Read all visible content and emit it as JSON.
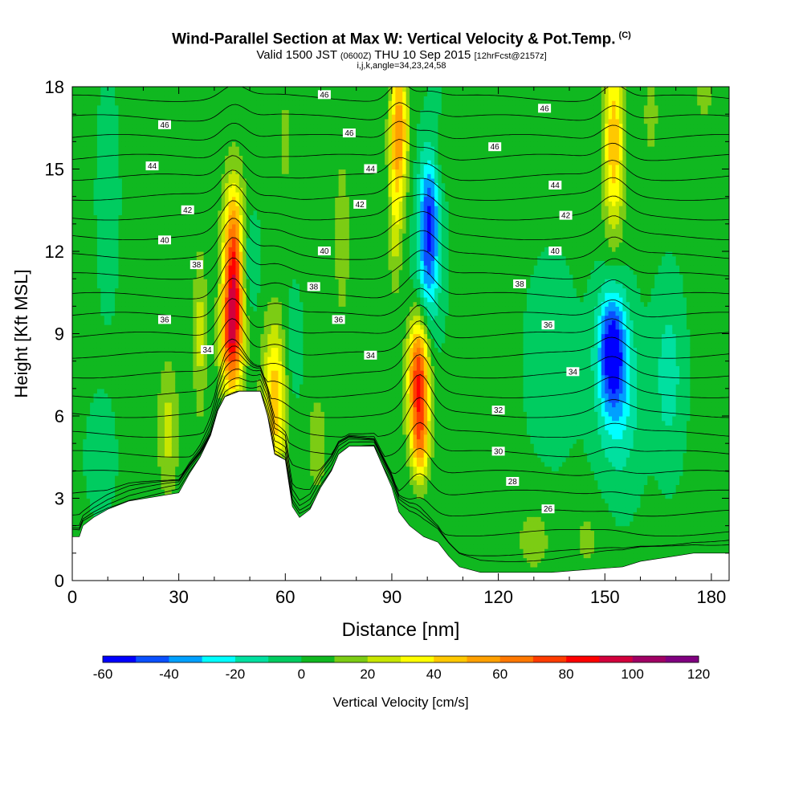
{
  "header": {
    "title": "Wind-Parallel Section at Max W: Vertical Velocity & Pot.Temp.",
    "title_mark": "(C)",
    "valid_a": "Valid 1500 JST",
    "valid_b": "(0600Z)",
    "valid_c": "THU 10 Sep 2015",
    "valid_d": "[12hrFcst@2157z]",
    "indices": "i,j,k,angle=34,23,24,58"
  },
  "chart_data": {
    "type": "heatmap",
    "xlabel": "Distance [nm]",
    "ylabel": "Height [Kft MSL]",
    "xlim": [
      0,
      185
    ],
    "ylim": [
      0,
      18
    ],
    "x_ticks": [
      "0",
      "30",
      "60",
      "90",
      "120",
      "150",
      "180"
    ],
    "y_ticks": [
      "0",
      "3",
      "6",
      "9",
      "12",
      "15",
      "18"
    ],
    "colorbar": {
      "label": "Vertical Velocity [cm/s]",
      "tick_labels": [
        "-60",
        "-40",
        "-20",
        "0",
        "20",
        "40",
        "60",
        "80",
        "100",
        "120"
      ],
      "levels": [
        -60,
        -50,
        -40,
        -30,
        -20,
        -10,
        0,
        10,
        20,
        30,
        40,
        50,
        60,
        70,
        80,
        90,
        100,
        110,
        120
      ],
      "colors": [
        "#0000ff",
        "#0a50ff",
        "#00a0ff",
        "#00ffff",
        "#00e0a0",
        "#00cc60",
        "#10b820",
        "#7ccc14",
        "#c8e600",
        "#ffff00",
        "#ffc800",
        "#ffa000",
        "#ff7800",
        "#ff3c00",
        "#ff0000",
        "#d2003c",
        "#a00064",
        "#800080"
      ]
    },
    "background_w": 2,
    "vertical_velocity_cells": [
      {
        "x": 45.5,
        "z": 11.0,
        "rx": 3.0,
        "rz": 3.2,
        "w": 90
      },
      {
        "x": 44.5,
        "z": 8.5,
        "rx": 3.0,
        "rz": 1.8,
        "w": 40
      },
      {
        "x": 49.0,
        "z": 11.5,
        "rx": 3.0,
        "rz": 1.8,
        "w": -20
      },
      {
        "x": 57.0,
        "z": 6.5,
        "rx": 3.5,
        "rz": 3.0,
        "w": 45
      },
      {
        "x": 62.0,
        "z": 8.5,
        "rx": 2.5,
        "rz": 2.0,
        "w": -12
      },
      {
        "x": 36.0,
        "z": 9.0,
        "rx": 2.0,
        "rz": 3.0,
        "w": 22
      },
      {
        "x": 27.0,
        "z": 5.5,
        "rx": 3.0,
        "rz": 2.5,
        "w": 22
      },
      {
        "x": 76.0,
        "z": 12.5,
        "rx": 3.0,
        "rz": 4.0,
        "w": 12
      },
      {
        "x": 69.0,
        "z": 5.0,
        "rx": 3.0,
        "rz": 2.0,
        "w": 15
      },
      {
        "x": 92.0,
        "z": 16.5,
        "rx": 2.5,
        "rz": 2.5,
        "w": 55
      },
      {
        "x": 91.0,
        "z": 13.0,
        "rx": 2.0,
        "rz": 2.5,
        "w": 22
      },
      {
        "x": 97.5,
        "z": 7.5,
        "rx": 3.0,
        "rz": 2.5,
        "w": 80
      },
      {
        "x": 98.0,
        "z": 5.0,
        "rx": 2.5,
        "rz": 1.5,
        "w": 35
      },
      {
        "x": 100.5,
        "z": 13.0,
        "rx": 3.0,
        "rz": 2.5,
        "w": -55
      },
      {
        "x": 99.0,
        "z": 10.0,
        "rx": 4.0,
        "rz": 2.0,
        "w": -20
      },
      {
        "x": 103.0,
        "z": 17.5,
        "rx": 2.0,
        "rz": 1.0,
        "w": -15
      },
      {
        "x": 104.0,
        "z": 16.5,
        "rx": 2.0,
        "rz": 2.0,
        "w": 12
      },
      {
        "x": 152.5,
        "z": 16.0,
        "rx": 3.0,
        "rz": 3.5,
        "w": 45
      },
      {
        "x": 152.0,
        "z": 8.5,
        "rx": 4.0,
        "rz": 2.2,
        "w": -55
      },
      {
        "x": 154.0,
        "z": 6.5,
        "rx": 6.0,
        "rz": 3.0,
        "w": -22
      },
      {
        "x": 168.0,
        "z": 7.5,
        "rx": 4.0,
        "rz": 3.0,
        "w": -18
      },
      {
        "x": 163.0,
        "z": 17.0,
        "rx": 2.0,
        "rz": 1.5,
        "w": 15
      },
      {
        "x": 178.0,
        "z": 17.8,
        "rx": 2.5,
        "rz": 1.0,
        "w": 15
      },
      {
        "x": 10.0,
        "z": 14.0,
        "rx": 3.0,
        "rz": 4.0,
        "w": -8
      },
      {
        "x": 135.0,
        "z": 8.0,
        "rx": 8.0,
        "rz": 4.0,
        "w": -6
      },
      {
        "x": 130.0,
        "z": 1.5,
        "rx": 6.0,
        "rz": 1.5,
        "w": 12
      },
      {
        "x": 145.0,
        "z": 1.5,
        "rx": 5.0,
        "rz": 1.5,
        "w": 10
      },
      {
        "x": 8.0,
        "z": 4.5,
        "rx": 4.0,
        "rz": 2.0,
        "w": -8
      },
      {
        "x": 60.0,
        "z": 16.0,
        "rx": 3.0,
        "rz": 2.5,
        "w": 10
      }
    ],
    "terrain": [
      [
        0,
        1.6
      ],
      [
        2,
        1.6
      ],
      [
        3,
        2.0
      ],
      [
        6,
        2.3
      ],
      [
        10,
        2.6
      ],
      [
        16,
        2.9
      ],
      [
        30,
        3.2
      ],
      [
        33,
        3.9
      ],
      [
        36,
        4.5
      ],
      [
        39,
        5.3
      ],
      [
        41,
        6.2
      ],
      [
        43,
        6.7
      ],
      [
        47,
        6.9
      ],
      [
        53,
        6.9
      ],
      [
        55,
        6.0
      ],
      [
        57,
        4.6
      ],
      [
        60,
        4.4
      ],
      [
        62,
        2.7
      ],
      [
        64,
        2.3
      ],
      [
        67,
        2.6
      ],
      [
        70,
        3.4
      ],
      [
        73,
        4.0
      ],
      [
        75,
        4.6
      ],
      [
        78,
        4.9
      ],
      [
        85,
        4.9
      ],
      [
        88,
        4.0
      ],
      [
        90,
        3.4
      ],
      [
        92,
        2.5
      ],
      [
        95,
        2.0
      ],
      [
        99,
        1.6
      ],
      [
        103,
        1.4
      ],
      [
        106,
        0.9
      ],
      [
        109,
        0.5
      ],
      [
        115,
        0.3
      ],
      [
        135,
        0.3
      ],
      [
        155,
        0.5
      ],
      [
        160,
        0.7
      ],
      [
        170,
        0.9
      ],
      [
        175,
        1.0
      ],
      [
        185,
        1.0
      ]
    ],
    "theta_contour_labels": [
      {
        "text": "46",
        "x": 71.0,
        "z": 17.7
      },
      {
        "text": "46",
        "x": 26.0,
        "z": 16.6
      },
      {
        "text": "46",
        "x": 78.0,
        "z": 16.3
      },
      {
        "text": "46",
        "x": 133.0,
        "z": 17.2
      },
      {
        "text": "46",
        "x": 119.0,
        "z": 15.8
      },
      {
        "text": "44",
        "x": 22.5,
        "z": 15.1
      },
      {
        "text": "44",
        "x": 84.0,
        "z": 15.0
      },
      {
        "text": "44",
        "x": 136.0,
        "z": 14.4
      },
      {
        "text": "42",
        "x": 32.5,
        "z": 13.5
      },
      {
        "text": "42",
        "x": 81.0,
        "z": 13.7
      },
      {
        "text": "42",
        "x": 139.0,
        "z": 13.3
      },
      {
        "text": "40",
        "x": 26.0,
        "z": 12.4
      },
      {
        "text": "40",
        "x": 71.0,
        "z": 12.0
      },
      {
        "text": "40",
        "x": 136.0,
        "z": 12.0
      },
      {
        "text": "38",
        "x": 35.0,
        "z": 11.5
      },
      {
        "text": "38",
        "x": 68.0,
        "z": 10.7
      },
      {
        "text": "38",
        "x": 126.0,
        "z": 10.8
      },
      {
        "text": "36",
        "x": 26.0,
        "z": 9.5
      },
      {
        "text": "36",
        "x": 75.0,
        "z": 9.5
      },
      {
        "text": "36",
        "x": 134.0,
        "z": 9.3
      },
      {
        "text": "34",
        "x": 38.0,
        "z": 8.4
      },
      {
        "text": "34",
        "x": 84.0,
        "z": 8.2
      },
      {
        "text": "34",
        "x": 141.0,
        "z": 7.6
      },
      {
        "text": "32",
        "x": 120.0,
        "z": 6.2
      },
      {
        "text": "30",
        "x": 120.0,
        "z": 4.7
      },
      {
        "text": "28",
        "x": 124.0,
        "z": 3.6
      },
      {
        "text": "26",
        "x": 134.0,
        "z": 2.6
      }
    ]
  }
}
